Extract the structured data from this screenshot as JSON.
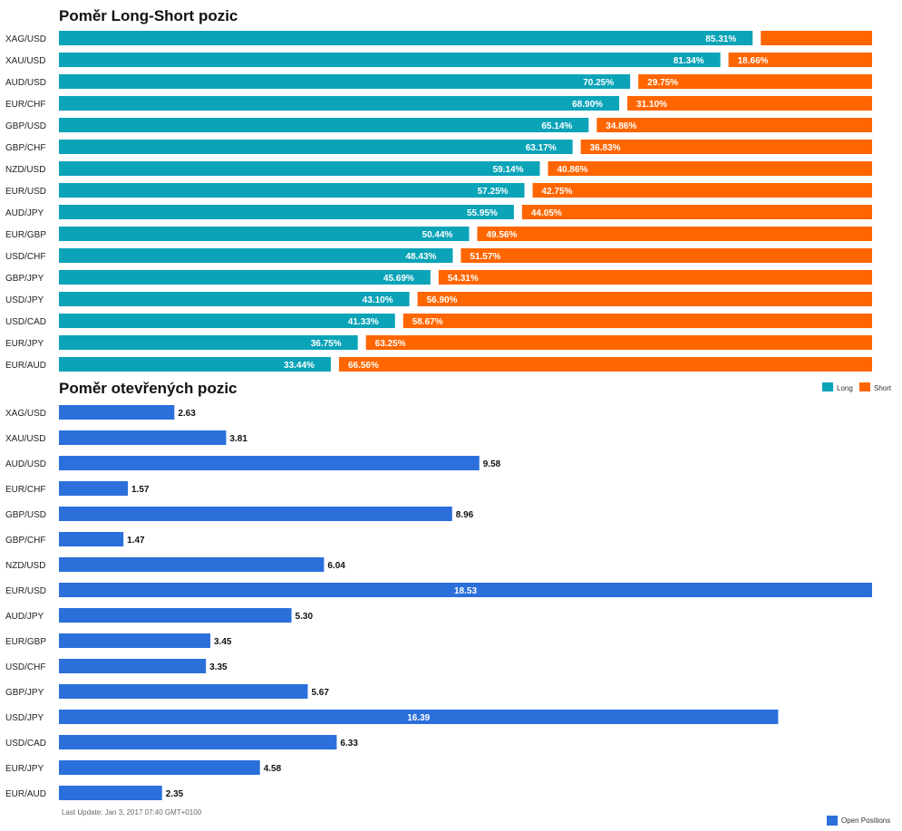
{
  "chart_data": [
    {
      "type": "bar",
      "orientation": "horizontal",
      "stacked": true,
      "title": "Poměr Long-Short pozic",
      "categories": [
        "XAG/USD",
        "XAU/USD",
        "AUD/USD",
        "EUR/CHF",
        "GBP/USD",
        "GBP/CHF",
        "NZD/USD",
        "EUR/USD",
        "AUD/JPY",
        "EUR/GBP",
        "USD/CHF",
        "GBP/JPY",
        "USD/JPY",
        "USD/CAD",
        "EUR/JPY",
        "EUR/AUD"
      ],
      "series": [
        {
          "name": "Long",
          "color": "#0AA3B8",
          "values": [
            85.31,
            81.34,
            70.25,
            68.9,
            65.14,
            63.17,
            59.14,
            57.25,
            55.95,
            50.44,
            48.43,
            45.69,
            43.1,
            41.33,
            36.75,
            33.44
          ],
          "labels": [
            "85.31%",
            "81.34%",
            "70.25%",
            "68.90%",
            "65.14%",
            "63.17%",
            "59.14%",
            "57.25%",
            "55.95%",
            "50.44%",
            "48.43%",
            "45.69%",
            "43.10%",
            "41.33%",
            "36.75%",
            "33.44%"
          ]
        },
        {
          "name": "Short",
          "color": "#FF6600",
          "values": [
            14.69,
            18.66,
            29.75,
            31.1,
            34.86,
            36.83,
            40.86,
            42.75,
            44.05,
            49.56,
            51.57,
            54.31,
            56.9,
            58.67,
            63.25,
            66.56
          ],
          "labels": [
            "",
            "18.66%",
            "29.75%",
            "31.10%",
            "34.86%",
            "36.83%",
            "40.86%",
            "42.75%",
            "44.05%",
            "49.56%",
            "51.57%",
            "54.31%",
            "56.90%",
            "58.67%",
            "63.25%",
            "66.56%"
          ]
        }
      ],
      "legend": "right",
      "grid": false
    },
    {
      "type": "bar",
      "orientation": "horizontal",
      "title": "Poměr otevřených pozic",
      "categories": [
        "XAG/USD",
        "XAU/USD",
        "AUD/USD",
        "EUR/CHF",
        "GBP/USD",
        "GBP/CHF",
        "NZD/USD",
        "EUR/USD",
        "AUD/JPY",
        "EUR/GBP",
        "USD/CHF",
        "GBP/JPY",
        "USD/JPY",
        "USD/CAD",
        "EUR/JPY",
        "EUR/AUD"
      ],
      "series": [
        {
          "name": "Open Positions",
          "color": "#2B6FDB",
          "values": [
            2.63,
            3.81,
            9.58,
            1.57,
            8.96,
            1.47,
            6.04,
            18.53,
            5.3,
            3.45,
            3.35,
            5.67,
            16.39,
            6.33,
            4.58,
            2.35
          ],
          "labels": [
            "2.63",
            "3.81",
            "9.58",
            "1.57",
            "8.96",
            "1.47",
            "6.04",
            "18.53",
            "5.30",
            "3.45",
            "3.35",
            "5.67",
            "16.39",
            "6.33",
            "4.58",
            "2.35"
          ]
        }
      ],
      "xlim": [
        0,
        18.53
      ],
      "legend": "bottom-right",
      "grid": false
    }
  ],
  "footer": "Last Update: Jan 3, 2017 07:40 GMT+0100"
}
